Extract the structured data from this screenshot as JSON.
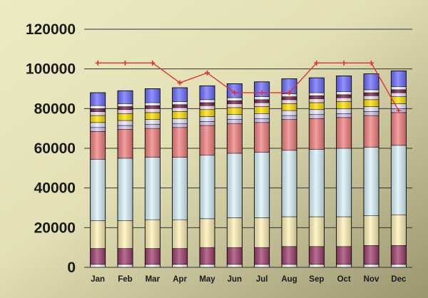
{
  "chart_data": {
    "type": "bar",
    "stacked": true,
    "title": "",
    "xlabel": "",
    "ylabel": "",
    "ylim": [
      0,
      120000
    ],
    "yticks": [
      "0",
      "20000",
      "40000",
      "60000",
      "80000",
      "100000",
      "120000"
    ],
    "ytick_values": [
      0,
      20000,
      40000,
      60000,
      80000,
      100000,
      120000
    ],
    "grid": true,
    "legend": "none",
    "categories": [
      "Jan",
      "Feb",
      "Mar",
      "Apr",
      "May",
      "Jun",
      "Jul",
      "Aug",
      "Sep",
      "Oct",
      "Nov",
      "Dec"
    ],
    "series": [
      {
        "color": "#ffffff",
        "values": [
          1500,
          1500,
          1500,
          1500,
          1500,
          1500,
          1500,
          1500,
          1500,
          1500,
          1500,
          1500
        ]
      },
      {
        "color": "#a0406e",
        "values": [
          8000,
          8000,
          8000,
          8000,
          8500,
          8500,
          8500,
          9000,
          9000,
          9000,
          9500,
          9500
        ]
      },
      {
        "color": "#fff2b8",
        "values": [
          14000,
          14000,
          14500,
          14500,
          14500,
          15000,
          15000,
          15000,
          15000,
          15000,
          15000,
          15500
        ]
      },
      {
        "color": "#d8f2fa",
        "values": [
          31000,
          31500,
          31500,
          31500,
          32000,
          32500,
          33000,
          33500,
          34000,
          34500,
          34500,
          35000
        ]
      },
      {
        "color": "#f08080",
        "values": [
          14000,
          14500,
          14500,
          15000,
          15000,
          15000,
          15000,
          15500,
          15500,
          15500,
          16000,
          16500
        ]
      },
      {
        "color": "#d8c4f0",
        "values": [
          2000,
          2000,
          2000,
          2000,
          2000,
          2000,
          2000,
          2000,
          2000,
          2000,
          2000,
          2000
        ]
      },
      {
        "color": "#e8e8ff",
        "values": [
          2500,
          2500,
          2500,
          2500,
          2500,
          2500,
          2500,
          2500,
          2500,
          2500,
          2500,
          2500
        ]
      },
      {
        "color": "#ffe000",
        "values": [
          3500,
          3500,
          3500,
          3500,
          3500,
          3500,
          3500,
          3500,
          3500,
          3500,
          3500,
          3500
        ]
      },
      {
        "color": "#f6e0ee",
        "values": [
          2000,
          2000,
          2000,
          2000,
          2000,
          2000,
          2000,
          2000,
          2000,
          2000,
          2000,
          2000
        ]
      },
      {
        "color": "#7a2050",
        "values": [
          1500,
          1500,
          1500,
          1500,
          1500,
          1500,
          1500,
          1500,
          1500,
          1500,
          1500,
          1500
        ]
      },
      {
        "color": "#ffffff",
        "values": [
          1500,
          1500,
          1500,
          1500,
          1500,
          1500,
          1500,
          1500,
          1500,
          1500,
          1500,
          1500
        ]
      },
      {
        "color": "#6e6eff",
        "values": [
          6500,
          6500,
          7000,
          7000,
          7000,
          7000,
          7500,
          7500,
          7500,
          8000,
          8000,
          8000
        ]
      }
    ],
    "line": {
      "color": "#e03030",
      "values": [
        103000,
        103000,
        103000,
        93000,
        98000,
        88000,
        88000,
        88000,
        103000,
        103000,
        103000,
        79000
      ]
    }
  }
}
